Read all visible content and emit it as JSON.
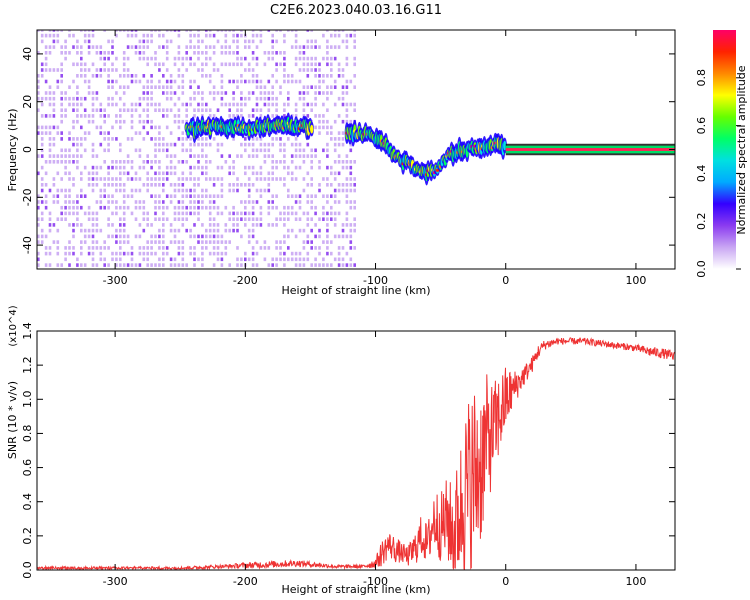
{
  "title": "C2E6.2023.040.03.16.G11",
  "chart_data": [
    {
      "type": "heatmap",
      "xlabel": "Height of straight line (km)",
      "ylabel": "Frequency (Hz)",
      "xlim": [
        -360,
        130
      ],
      "ylim": [
        -50,
        50
      ],
      "xticks": [
        -300,
        -200,
        -100,
        0,
        100
      ],
      "yticks": [
        -40,
        -20,
        0,
        20,
        40
      ],
      "grid": false,
      "colorbar": {
        "label": "Normalized spectral amplitude",
        "range": [
          0.0,
          1.0
        ],
        "ticks": [
          "0.0",
          "0.2",
          "0.4",
          "0.6",
          "0.8"
        ],
        "colors": [
          "#ffffff",
          "#c9a6f3",
          "#8b3bf0",
          "#3300ff",
          "#00aaff",
          "#00e0e0",
          "#00ff66",
          "#66ff00",
          "#ffff00",
          "#ff8800",
          "#ff2200",
          "#ff0066"
        ]
      },
      "regions": [
        {
          "name": "noise",
          "x_range": [
            -360,
            -115
          ],
          "y_range": [
            -50,
            50
          ],
          "amplitude": 0.25
        },
        {
          "name": "early trace",
          "x_range": [
            -245,
            -148
          ],
          "freq_points": [
            [
              -245,
              8
            ],
            [
              -220,
              10
            ],
            [
              -200,
              9
            ],
            [
              -180,
              10
            ],
            [
              -160,
              10
            ],
            [
              -148,
              9
            ]
          ],
          "amplitude": 0.6
        },
        {
          "name": "descending trace",
          "x_range": [
            -122,
            0
          ],
          "freq_points": [
            [
              -122,
              7
            ],
            [
              -105,
              6
            ],
            [
              -95,
              3
            ],
            [
              -85,
              -3
            ],
            [
              -75,
              -6
            ],
            [
              -62,
              -10
            ],
            [
              -52,
              -8
            ],
            [
              -45,
              -3
            ],
            [
              -35,
              0
            ],
            [
              -20,
              1
            ],
            [
              -5,
              2
            ],
            [
              0,
              1
            ]
          ],
          "amplitude": 0.7
        },
        {
          "name": "direct line",
          "x_range": [
            0,
            130
          ],
          "freq_points": [
            [
              0,
              0
            ],
            [
              130,
              0
            ]
          ],
          "amplitude": 1.0
        }
      ]
    },
    {
      "type": "line",
      "xlabel": "Height of straight line (km)",
      "ylabel": "SNR (10 * v/v)",
      "y_multiplier": "(x10^4)",
      "xlim": [
        -360,
        130
      ],
      "ylim": [
        0,
        1.4
      ],
      "xticks": [
        -300,
        -200,
        -100,
        0,
        100
      ],
      "yticks": [
        "0.0",
        "0.2",
        "0.4",
        "0.6",
        "0.8",
        "1.0",
        "1.2",
        "1.4"
      ],
      "series": [
        {
          "color": "#ee3333",
          "x": [
            -360,
            -300,
            -250,
            -220,
            -190,
            -160,
            -130,
            -110,
            -100,
            -95,
            -90,
            -85,
            -80,
            -75,
            -70,
            -65,
            -60,
            -55,
            -50,
            -45,
            -40,
            -35,
            -30,
            -25,
            -20,
            -15,
            -10,
            -5,
            0,
            5,
            10,
            15,
            20,
            25,
            30,
            40,
            50,
            60,
            70,
            80,
            90,
            100,
            110,
            120,
            130
          ],
          "values": [
            0.01,
            0.01,
            0.01,
            0.02,
            0.03,
            0.04,
            0.02,
            0.02,
            0.04,
            0.1,
            0.15,
            0.12,
            0.1,
            0.08,
            0.12,
            0.2,
            0.15,
            0.3,
            0.25,
            0.3,
            0.2,
            0.35,
            0.45,
            0.55,
            0.6,
            0.75,
            0.8,
            0.9,
            1.0,
            1.05,
            1.1,
            1.15,
            1.2,
            1.28,
            1.32,
            1.34,
            1.34,
            1.34,
            1.33,
            1.32,
            1.31,
            1.3,
            1.28,
            1.27,
            1.25
          ],
          "noise_amplitude": [
            0.01,
            0.01,
            0.01,
            0.01,
            0.02,
            0.02,
            0.01,
            0.01,
            0.03,
            0.08,
            0.08,
            0.08,
            0.06,
            0.06,
            0.1,
            0.12,
            0.12,
            0.2,
            0.2,
            0.25,
            0.3,
            0.4,
            0.55,
            0.55,
            0.5,
            0.4,
            0.3,
            0.25,
            0.2,
            0.12,
            0.08,
            0.06,
            0.05,
            0.04,
            0.03,
            0.02,
            0.02,
            0.02,
            0.02,
            0.02,
            0.02,
            0.02,
            0.03,
            0.03,
            0.03
          ]
        }
      ]
    }
  ]
}
